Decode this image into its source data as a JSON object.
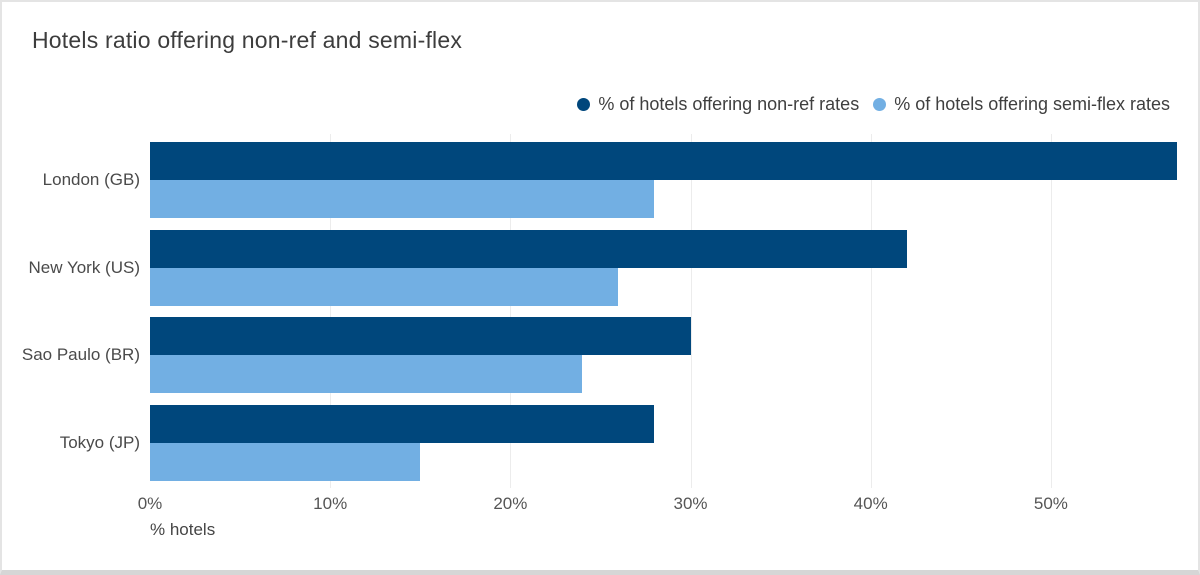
{
  "chart_data": {
    "type": "bar",
    "orientation": "horizontal",
    "title": "Hotels ratio offering non-ref and semi-flex",
    "categories": [
      "London (GB)",
      "New York (US)",
      "Sao Paulo (BR)",
      "Tokyo (JP)"
    ],
    "series": [
      {
        "name": "% of hotels offering non-ref rates",
        "color": "#00477c",
        "values": [
          57,
          42,
          30,
          28
        ]
      },
      {
        "name": "% of hotels offering semi-flex rates",
        "color": "#72afe3",
        "values": [
          28,
          26,
          24,
          15
        ]
      }
    ],
    "xlabel": "% hotels",
    "x_ticks": [
      {
        "value": 0,
        "label": "0%"
      },
      {
        "value": 10,
        "label": "10%"
      },
      {
        "value": 20,
        "label": "20%"
      },
      {
        "value": 30,
        "label": "30%"
      },
      {
        "value": 40,
        "label": "40%"
      },
      {
        "value": 50,
        "label": "50%"
      }
    ],
    "xlim": [
      0,
      57
    ],
    "grid": "vertical-light",
    "legend_position": "top-right",
    "gridline_color": "#ececec"
  }
}
